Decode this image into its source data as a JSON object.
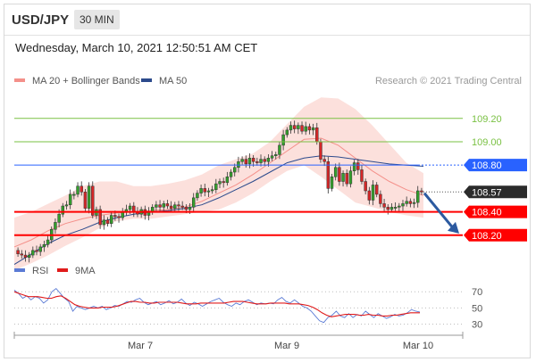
{
  "header": {
    "symbol": "USD/JPY",
    "timeframe": "30 MIN"
  },
  "datetime": "Wednesday, March 10, 2021 12:50:51 AM CET",
  "legend": {
    "ma20_label": "MA 20 + Bollinger Bands",
    "ma50_label": "MA 50",
    "copyright": "Research © 2021 Trading Central",
    "rsi_label": "RSI",
    "rsi_ma_label": "9MA"
  },
  "colors": {
    "green_level": "#7ac143",
    "blue_level": "#2962ff",
    "red_level": "#ff0000",
    "bollinger_fill": "#fbd5d0",
    "ma20": "#f4908a",
    "ma50": "#2c4a8c",
    "candle_up": "#33a02c",
    "candle_down": "#d62728",
    "rsi": "#5b7bd5",
    "rsi_ma": "#e01b1b"
  },
  "chart_data": [
    {
      "type": "candlestick",
      "ylim": [
        108.0,
        109.45
      ],
      "x_ticks": [
        "Mar 7",
        "Mar 9",
        "Mar 10"
      ],
      "levels": [
        {
          "value": 109.2,
          "label": "109.20",
          "kind": "resistance",
          "style": "green-line"
        },
        {
          "value": 109.0,
          "label": "109.00",
          "kind": "resistance",
          "style": "green-line"
        },
        {
          "value": 108.8,
          "label": "108.80",
          "kind": "pivot",
          "style": "blue-box"
        },
        {
          "value": 108.57,
          "label": "108.57",
          "kind": "current",
          "style": "dark-box"
        },
        {
          "value": 108.4,
          "label": "108.40",
          "kind": "support",
          "style": "red-box"
        },
        {
          "value": 108.2,
          "label": "108.20",
          "kind": "support",
          "style": "red-box"
        }
      ],
      "close": [
        108.04,
        108.03,
        108.01,
        108.03,
        108.07,
        108.06,
        108.1,
        108.12,
        108.16,
        108.25,
        108.31,
        108.38,
        108.45,
        108.46,
        108.55,
        108.55,
        108.62,
        108.57,
        108.43,
        108.62,
        108.37,
        108.42,
        108.29,
        108.33,
        108.3,
        108.37,
        108.36,
        108.35,
        108.4,
        108.42,
        108.45,
        108.4,
        108.38,
        108.42,
        108.37,
        108.4,
        108.44,
        108.46,
        108.44,
        108.47,
        108.45,
        108.43,
        108.46,
        108.45,
        108.44,
        108.42,
        108.44,
        108.52,
        108.56,
        108.6,
        108.57,
        108.58,
        108.59,
        108.64,
        108.66,
        108.65,
        108.7,
        108.74,
        108.78,
        108.83,
        108.85,
        108.81,
        108.86,
        108.83,
        108.82,
        108.85,
        108.83,
        108.86,
        108.88,
        108.89,
        108.97,
        109.06,
        109.1,
        109.14,
        109.11,
        109.14,
        109.09,
        109.13,
        109.1,
        109.12,
        109.0,
        108.85,
        108.83,
        108.6,
        108.7,
        108.78,
        108.66,
        108.73,
        108.64,
        108.75,
        108.82,
        108.76,
        108.66,
        108.58,
        108.5,
        108.63,
        108.55,
        108.47,
        108.44,
        108.42,
        108.44,
        108.44,
        108.45,
        108.47,
        108.49,
        108.47,
        108.48,
        108.58,
        108.57
      ],
      "bollinger": {
        "upper": [
          108.35,
          108.4,
          108.47,
          108.54,
          108.62,
          108.66,
          108.66,
          108.62,
          108.62,
          108.64,
          108.67,
          108.72,
          108.8,
          108.85,
          108.9,
          109.0,
          109.15,
          109.3,
          109.38,
          109.37,
          109.28,
          109.14,
          108.98,
          108.82,
          108.73
        ],
        "middle": [
          108.1,
          108.16,
          108.24,
          108.3,
          108.34,
          108.37,
          108.39,
          108.4,
          108.41,
          108.42,
          108.44,
          108.49,
          108.56,
          108.63,
          108.72,
          108.82,
          108.92,
          109.02,
          109.03,
          108.97,
          108.86,
          108.75,
          108.66,
          108.59,
          108.54
        ],
        "lower": [
          107.9,
          107.96,
          108.03,
          108.11,
          108.18,
          108.26,
          108.32,
          108.34,
          108.34,
          108.36,
          108.38,
          108.4,
          108.42,
          108.48,
          108.56,
          108.66,
          108.75,
          108.8,
          108.7,
          108.59,
          108.48,
          108.44,
          108.4,
          108.37,
          108.35
        ]
      },
      "ma50": [
        107.95,
        108.04,
        108.13,
        108.2,
        108.25,
        108.31,
        108.35,
        108.38,
        108.4,
        108.41,
        108.43,
        108.46,
        108.52,
        108.59,
        108.66,
        108.74,
        108.82,
        108.86,
        108.88,
        108.87,
        108.85,
        108.83,
        108.81,
        108.8,
        108.79
      ]
    },
    {
      "type": "line",
      "title": "RSI",
      "ylim": [
        25,
        78
      ],
      "y_ticks": [
        30,
        50,
        70
      ],
      "series": [
        {
          "name": "RSI",
          "values": [
            72,
            68,
            62,
            65,
            60,
            64,
            62,
            56,
            60,
            70,
            74,
            68,
            62,
            58,
            46,
            52,
            50,
            48,
            50,
            52,
            50,
            52,
            48,
            50,
            53,
            52,
            55,
            58,
            57,
            60,
            62,
            57,
            54,
            56,
            58,
            54,
            56,
            59,
            55,
            57,
            61,
            56,
            53,
            57,
            55,
            52,
            55,
            58,
            60,
            62,
            57,
            54,
            52,
            56,
            54,
            58,
            60,
            57,
            54,
            56,
            55,
            56,
            55,
            60,
            63,
            58,
            56,
            60,
            56,
            52,
            50,
            46,
            40,
            34,
            32,
            38,
            41,
            46,
            40,
            38,
            43,
            38,
            42,
            40,
            46,
            42,
            38,
            43,
            40,
            37,
            39,
            42,
            40,
            41,
            44,
            48,
            46,
            45
          ]
        },
        {
          "name": "9MA",
          "values": [
            70,
            68,
            66,
            64,
            64,
            64,
            63,
            62,
            62,
            64,
            65,
            62,
            58,
            54,
            52,
            51,
            50,
            50,
            50,
            51,
            51,
            51,
            52,
            54,
            56,
            58,
            58,
            57,
            57,
            56,
            56,
            57,
            57,
            57,
            57,
            57,
            56,
            55,
            55,
            55,
            56,
            56,
            56,
            56,
            56,
            56,
            57,
            58,
            58,
            58,
            57,
            56,
            55,
            55,
            55,
            56,
            56,
            56,
            56,
            55,
            55,
            55,
            54,
            53,
            51,
            48,
            44,
            41,
            39,
            40,
            41,
            42,
            42,
            42,
            41,
            41,
            42,
            41,
            41,
            40,
            40,
            41,
            41,
            42,
            43,
            44,
            44,
            44
          ]
        }
      ]
    }
  ]
}
